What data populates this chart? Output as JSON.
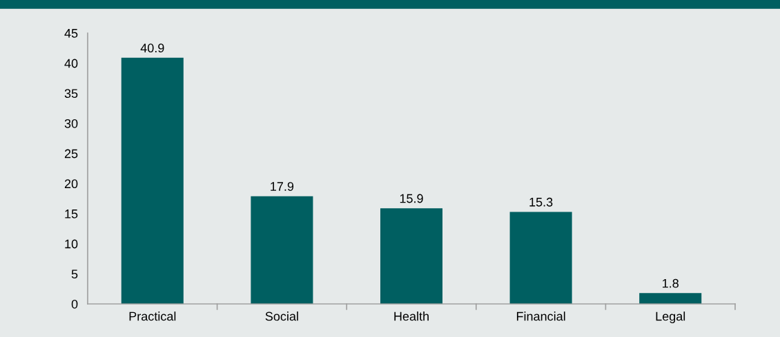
{
  "chart_data": {
    "type": "bar",
    "categories": [
      "Practical",
      "Social",
      "Health",
      "Financial",
      "Legal"
    ],
    "values": [
      40.9,
      17.9,
      15.9,
      15.3,
      1.8
    ],
    "color": "#005f61",
    "ylim": [
      0,
      45
    ],
    "yticks": [
      0,
      5,
      10,
      15,
      20,
      25,
      30,
      35,
      40,
      45
    ],
    "grid": false,
    "data_labels": true
  }
}
